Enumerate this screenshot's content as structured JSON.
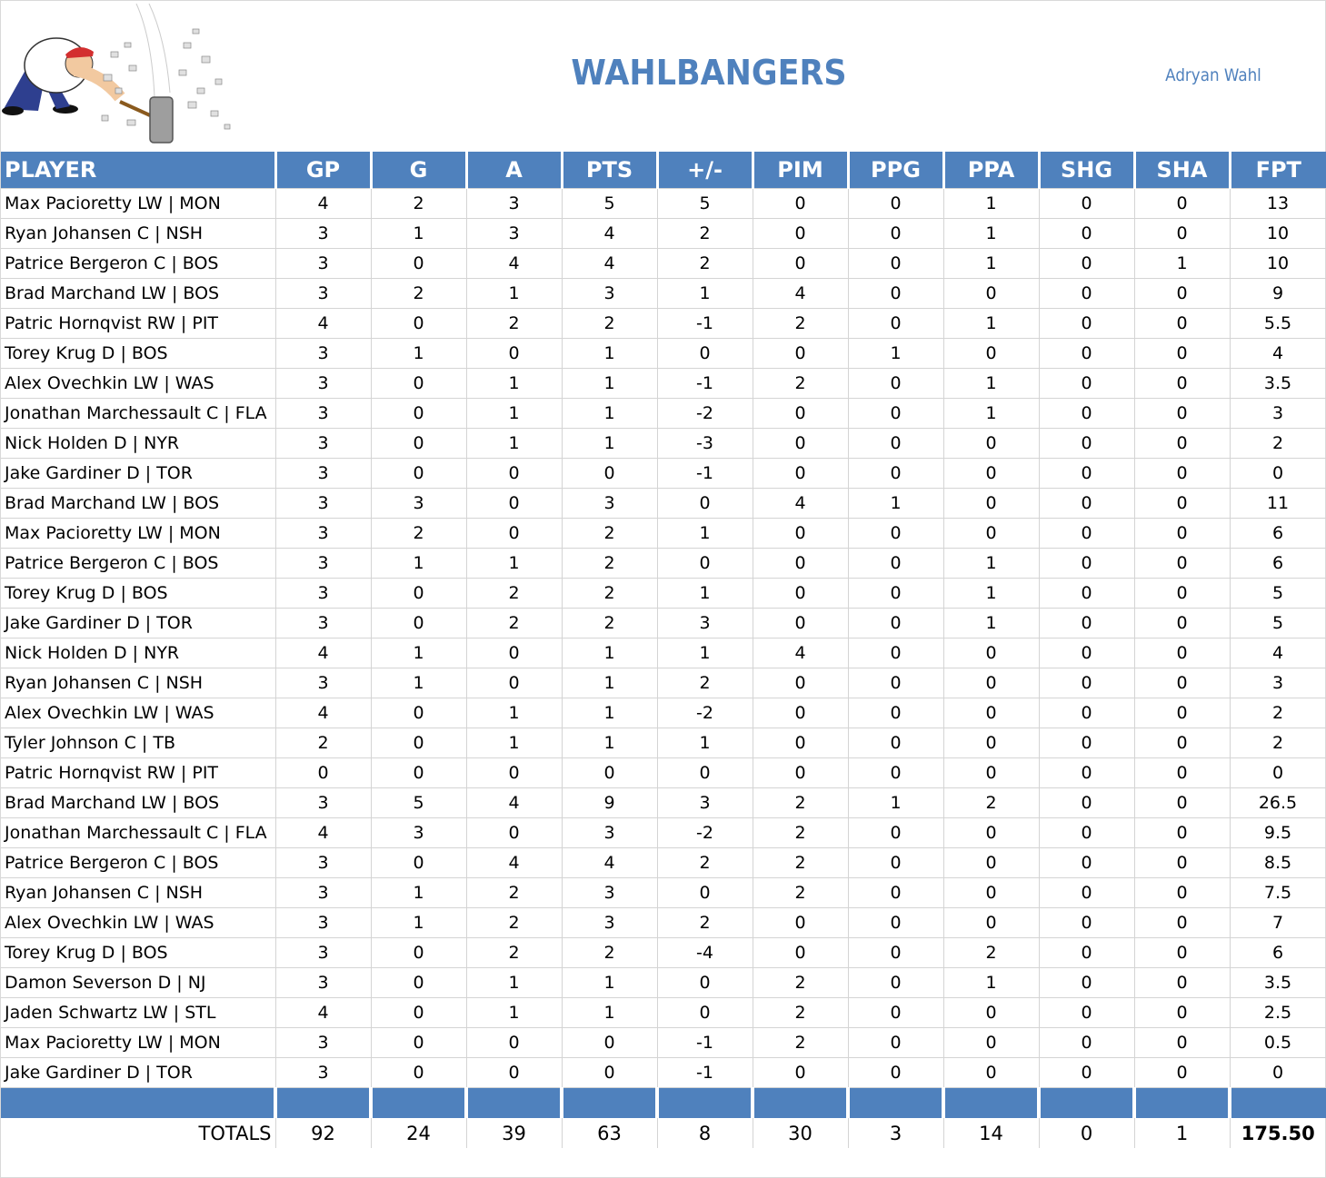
{
  "header": {
    "team_name": "WAHLBANGERS",
    "owner_name": "Adryan Wahl",
    "logo": "hammer-smashing-man-logo"
  },
  "colors": {
    "accent": "#4f81bd",
    "header_text": "#ffffff",
    "grid": "#d4d4d4"
  },
  "columns": [
    "PLAYER",
    "GP",
    "G",
    "A",
    "PTS",
    "+/-",
    "PIM",
    "PPG",
    "PPA",
    "SHG",
    "SHA",
    "FPT"
  ],
  "rows": [
    [
      "Max Pacioretty LW | MON",
      "4",
      "2",
      "3",
      "5",
      "5",
      "0",
      "0",
      "1",
      "0",
      "0",
      "13"
    ],
    [
      "Ryan Johansen C | NSH",
      "3",
      "1",
      "3",
      "4",
      "2",
      "0",
      "0",
      "1",
      "0",
      "0",
      "10"
    ],
    [
      "Patrice Bergeron C | BOS",
      "3",
      "0",
      "4",
      "4",
      "2",
      "0",
      "0",
      "1",
      "0",
      "1",
      "10"
    ],
    [
      "Brad Marchand LW | BOS",
      "3",
      "2",
      "1",
      "3",
      "1",
      "4",
      "0",
      "0",
      "0",
      "0",
      "9"
    ],
    [
      "Patric Hornqvist RW | PIT",
      "4",
      "0",
      "2",
      "2",
      "-1",
      "2",
      "0",
      "1",
      "0",
      "0",
      "5.5"
    ],
    [
      "Torey Krug D | BOS",
      "3",
      "1",
      "0",
      "1",
      "0",
      "0",
      "1",
      "0",
      "0",
      "0",
      "4"
    ],
    [
      "Alex Ovechkin LW | WAS",
      "3",
      "0",
      "1",
      "1",
      "-1",
      "2",
      "0",
      "1",
      "0",
      "0",
      "3.5"
    ],
    [
      "Jonathan Marchessault C | FLA",
      "3",
      "0",
      "1",
      "1",
      "-2",
      "0",
      "0",
      "1",
      "0",
      "0",
      "3"
    ],
    [
      "Nick Holden D | NYR",
      "3",
      "0",
      "1",
      "1",
      "-3",
      "0",
      "0",
      "0",
      "0",
      "0",
      "2"
    ],
    [
      "Jake Gardiner D | TOR",
      "3",
      "0",
      "0",
      "0",
      "-1",
      "0",
      "0",
      "0",
      "0",
      "0",
      "0"
    ],
    [
      "Brad Marchand LW | BOS",
      "3",
      "3",
      "0",
      "3",
      "0",
      "4",
      "1",
      "0",
      "0",
      "0",
      "11"
    ],
    [
      "Max Pacioretty LW | MON",
      "3",
      "2",
      "0",
      "2",
      "1",
      "0",
      "0",
      "0",
      "0",
      "0",
      "6"
    ],
    [
      "Patrice Bergeron C | BOS",
      "3",
      "1",
      "1",
      "2",
      "0",
      "0",
      "0",
      "1",
      "0",
      "0",
      "6"
    ],
    [
      "Torey Krug D | BOS",
      "3",
      "0",
      "2",
      "2",
      "1",
      "0",
      "0",
      "1",
      "0",
      "0",
      "5"
    ],
    [
      "Jake Gardiner D | TOR",
      "3",
      "0",
      "2",
      "2",
      "3",
      "0",
      "0",
      "1",
      "0",
      "0",
      "5"
    ],
    [
      "Nick Holden D | NYR",
      "4",
      "1",
      "0",
      "1",
      "1",
      "4",
      "0",
      "0",
      "0",
      "0",
      "4"
    ],
    [
      "Ryan Johansen C | NSH",
      "3",
      "1",
      "0",
      "1",
      "2",
      "0",
      "0",
      "0",
      "0",
      "0",
      "3"
    ],
    [
      "Alex Ovechkin LW | WAS",
      "4",
      "0",
      "1",
      "1",
      "-2",
      "0",
      "0",
      "0",
      "0",
      "0",
      "2"
    ],
    [
      "Tyler Johnson C | TB",
      "2",
      "0",
      "1",
      "1",
      "1",
      "0",
      "0",
      "0",
      "0",
      "0",
      "2"
    ],
    [
      "Patric Hornqvist RW | PIT",
      "0",
      "0",
      "0",
      "0",
      "0",
      "0",
      "0",
      "0",
      "0",
      "0",
      "0"
    ],
    [
      "Brad Marchand LW | BOS",
      "3",
      "5",
      "4",
      "9",
      "3",
      "2",
      "1",
      "2",
      "0",
      "0",
      "26.5"
    ],
    [
      "Jonathan Marchessault C | FLA",
      "4",
      "3",
      "0",
      "3",
      "-2",
      "2",
      "0",
      "0",
      "0",
      "0",
      "9.5"
    ],
    [
      "Patrice Bergeron C | BOS",
      "3",
      "0",
      "4",
      "4",
      "2",
      "2",
      "0",
      "0",
      "0",
      "0",
      "8.5"
    ],
    [
      "Ryan Johansen C | NSH",
      "3",
      "1",
      "2",
      "3",
      "0",
      "2",
      "0",
      "0",
      "0",
      "0",
      "7.5"
    ],
    [
      "Alex Ovechkin LW | WAS",
      "3",
      "1",
      "2",
      "3",
      "2",
      "0",
      "0",
      "0",
      "0",
      "0",
      "7"
    ],
    [
      "Torey Krug D | BOS",
      "3",
      "0",
      "2",
      "2",
      "-4",
      "0",
      "0",
      "2",
      "0",
      "0",
      "6"
    ],
    [
      "Damon Severson D | NJ",
      "3",
      "0",
      "1",
      "1",
      "0",
      "2",
      "0",
      "1",
      "0",
      "0",
      "3.5"
    ],
    [
      "Jaden Schwartz LW | STL",
      "4",
      "0",
      "1",
      "1",
      "0",
      "2",
      "0",
      "0",
      "0",
      "0",
      "2.5"
    ],
    [
      "Max Pacioretty LW | MON",
      "3",
      "0",
      "0",
      "0",
      "-1",
      "2",
      "0",
      "0",
      "0",
      "0",
      "0.5"
    ],
    [
      "Jake Gardiner D | TOR",
      "3",
      "0",
      "0",
      "0",
      "-1",
      "0",
      "0",
      "0",
      "0",
      "0",
      "0"
    ]
  ],
  "totals": {
    "label": "TOTALS",
    "values": [
      "92",
      "24",
      "39",
      "63",
      "8",
      "30",
      "3",
      "14",
      "0",
      "1",
      "175.50"
    ]
  }
}
